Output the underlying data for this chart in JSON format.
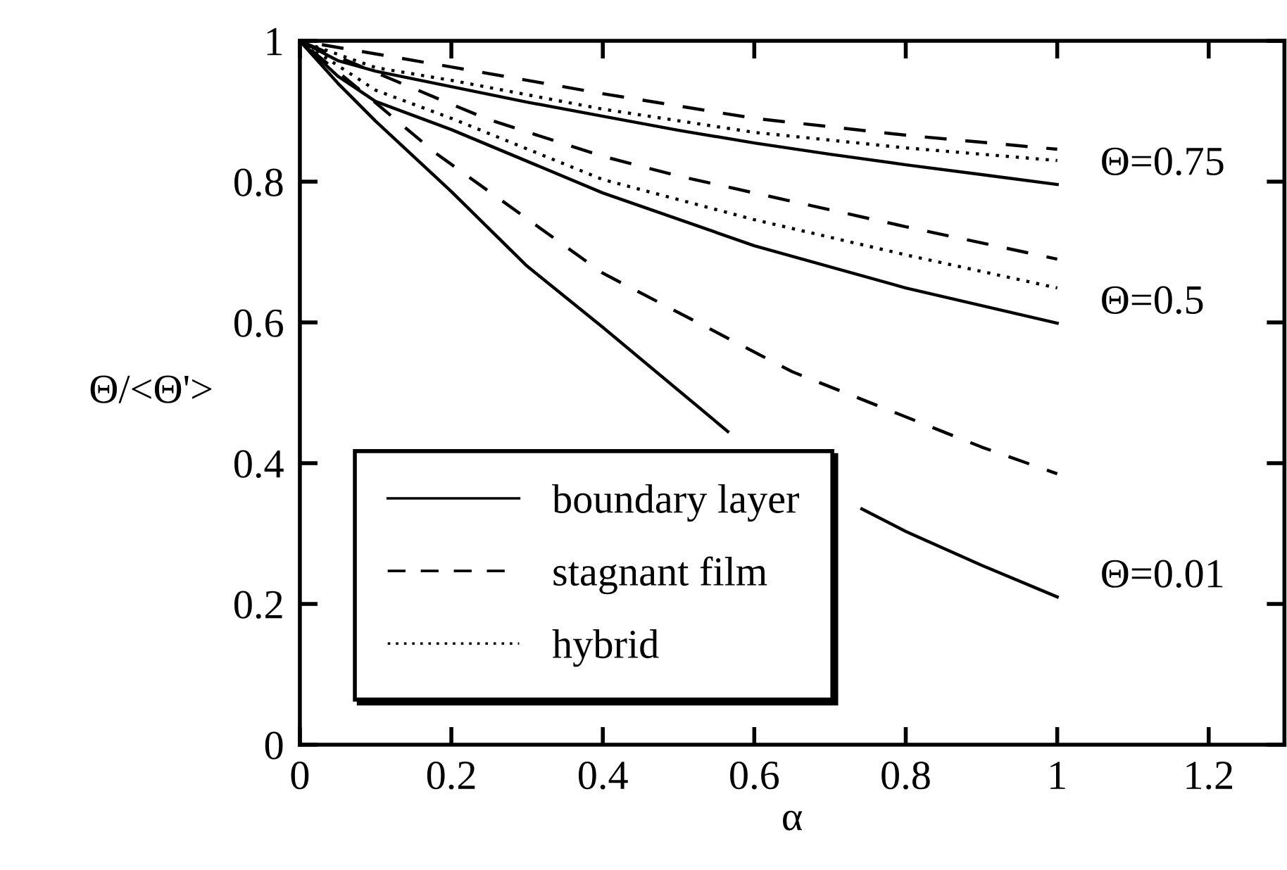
{
  "chart_data": {
    "type": "line",
    "xlabel": "α",
    "ylabel": "Θ/<Θ'>",
    "xlim": [
      0,
      1.3
    ],
    "ylim": [
      0,
      1
    ],
    "xticks": [
      0,
      0.2,
      0.4,
      0.6,
      0.8,
      1,
      1.2
    ],
    "yticks": [
      0,
      0.2,
      0.4,
      0.6,
      0.8,
      1
    ],
    "grid": false,
    "legend": "bottom left",
    "marker": "none",
    "series": [
      {
        "name": "boundary layer",
        "color": "#000000",
        "line_style": "solid",
        "x": [
          0,
          0.05,
          0.1,
          0.2,
          0.3,
          0.4,
          0.5,
          0.6,
          0.7,
          0.8,
          0.9,
          1
        ],
        "values": [
          1,
          0.972,
          0.957,
          0.935,
          0.913,
          0.893,
          0.873,
          0.855,
          0.839,
          0.824,
          0.81,
          0.796
        ]
      },
      {
        "name": "stagnant film",
        "color": "#000000",
        "line_style": "dashed",
        "x": [
          0,
          0.2,
          0.4,
          0.6,
          0.8,
          1
        ],
        "values": [
          1,
          0.963,
          0.925,
          0.89,
          0.866,
          0.846
        ]
      },
      {
        "name": "hybrid",
        "color": "#000000",
        "line_style": "dotted",
        "x": [
          0,
          0.1,
          0.2,
          0.4,
          0.6,
          0.8,
          1
        ],
        "values": [
          1,
          0.962,
          0.944,
          0.903,
          0.87,
          0.848,
          0.83
        ]
      },
      {
        "color": "#000000",
        "line_style": "solid",
        "x": [
          0,
          0.05,
          0.1,
          0.2,
          0.4,
          0.6,
          0.8,
          1
        ],
        "values": [
          1,
          0.95,
          0.914,
          0.874,
          0.784,
          0.709,
          0.649,
          0.599
        ]
      },
      {
        "color": "#000000",
        "line_style": "dashed",
        "x": [
          0,
          0.1,
          0.2,
          0.25,
          0.4,
          0.5,
          0.6,
          0.8,
          1
        ],
        "values": [
          1,
          0.955,
          0.91,
          0.888,
          0.836,
          0.808,
          0.784,
          0.736,
          0.69
        ]
      },
      {
        "color": "#000000",
        "line_style": "dotted",
        "x": [
          0,
          0.1,
          0.2,
          0.4,
          0.6,
          0.8,
          1
        ],
        "values": [
          1,
          0.93,
          0.89,
          0.803,
          0.746,
          0.696,
          0.649
        ]
      },
      {
        "color": "#000000",
        "line_style": "solid",
        "x": [
          0,
          0.05,
          0.1,
          0.2,
          0.3,
          0.4,
          0.565,
          0.65,
          0.742,
          0.8,
          0.9,
          1
        ],
        "values": [
          1,
          0.94,
          0.886,
          0.786,
          0.68,
          0.593,
          0.445,
          null,
          0.335,
          0.303,
          0.255,
          0.21
        ]
      },
      {
        "color": "#000000",
        "line_style": "dashed",
        "x": [
          0,
          0.1,
          0.18,
          0.4,
          0.65,
          0.9,
          1
        ],
        "values": [
          1,
          0.912,
          0.84,
          0.67,
          0.53,
          0.423,
          0.385
        ]
      }
    ],
    "annotations": [
      "Θ=0.75",
      "Θ=0.5",
      "Θ=0.01"
    ]
  }
}
